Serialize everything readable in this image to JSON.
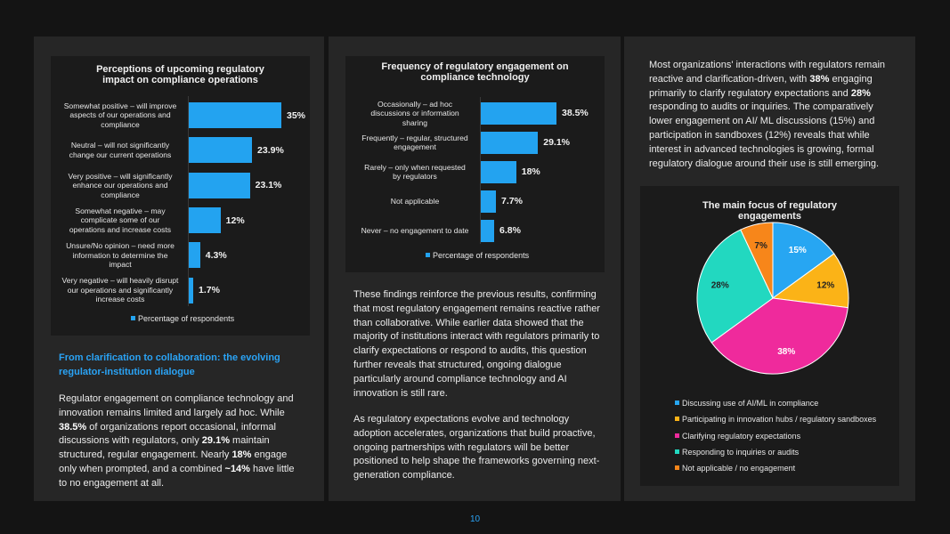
{
  "chart_data": [
    {
      "type": "bar",
      "orientation": "horizontal",
      "title": "Perceptions of upcoming regulatory impact on compliance operations",
      "title_lines": [
        "Perceptions of upcoming regulatory",
        "impact on compliance operations"
      ],
      "categories": [
        "Somewhat positive – will improve aspects of our operations and compliance",
        "Neutral – will not significantly change our current operations",
        "Very positive – will significantly enhance our operations and compliance",
        "Somewhat negative – may complicate some of our operations and increase costs",
        "Unsure/No opinion – need more information to determine the impact",
        "Very negative – will heavily disrupt our operations and significantly increase costs"
      ],
      "category_lines": [
        [
          "Somewhat positive – will improve",
          "aspects of our operations and",
          "compliance"
        ],
        [
          "Neutral – will not significantly",
          "change our current operations"
        ],
        [
          "Very positive – will significantly",
          "enhance our operations and",
          "compliance"
        ],
        [
          "Somewhat negative – may",
          "complicate some of our",
          "operations and increase costs"
        ],
        [
          "Unsure/No opinion – need more",
          "information to determine the",
          "impact"
        ],
        [
          "Very negative – will heavily disrupt",
          "our operations and significantly",
          "increase costs"
        ]
      ],
      "values": [
        35,
        23.9,
        23.1,
        12,
        4.3,
        1.7
      ],
      "value_labels": [
        "35%",
        "23.9%",
        "23.1%",
        "12%",
        "4.3%",
        "1.7%"
      ],
      "legend": "Percentage of respondents",
      "xlim": [
        0,
        35
      ]
    },
    {
      "type": "bar",
      "orientation": "horizontal",
      "title": "Frequency of regulatory engagement on compliance technology",
      "title_lines": [
        "Frequency of regulatory engagement on",
        "compliance technology"
      ],
      "categories": [
        "Occasionally – ad hoc discussions or information sharing",
        "Frequently – regular, structured engagement",
        "Rarely – only when requested by regulators",
        "Not applicable",
        "Never – no engagement to date"
      ],
      "category_lines": [
        [
          "Occasionally – ad hoc",
          "discussions or information",
          "sharing"
        ],
        [
          "Frequently – regular, structured",
          "engagement"
        ],
        [
          "Rarely – only when requested",
          "by regulators"
        ],
        [
          "Not applicable"
        ],
        [
          "Never – no engagement to date"
        ]
      ],
      "values": [
        38.5,
        29.1,
        18,
        7.7,
        6.8
      ],
      "value_labels": [
        "38.5%",
        "29.1%",
        "18%",
        "7.7%",
        "6.8%"
      ],
      "legend": "Percentage of respondents",
      "xlim": [
        0,
        38.5
      ]
    },
    {
      "type": "pie",
      "title": "The main focus of regulatory engagements",
      "title_lines": [
        "The main focus of regulatory",
        "engagements"
      ],
      "slices": [
        {
          "name": "Discussing use of AI/ML in compliance",
          "value": 15,
          "label": "15%",
          "color": "#27a6f2"
        },
        {
          "name": "Participating in innovation hubs / regulatory sandboxes",
          "value": 12,
          "label": "12%",
          "color": "#fbb317"
        },
        {
          "name": "Clarifying regulatory expectations",
          "value": 38,
          "label": "38%",
          "color": "#ef2a9c"
        },
        {
          "name": "Responding to inquiries or audits",
          "value": 28,
          "label": "28%",
          "color": "#22d8c0"
        },
        {
          "name": "Not applicable / no engagement",
          "value": 7,
          "label": "7%",
          "color": "#f7861a"
        }
      ]
    }
  ],
  "section": {
    "heading_lines": [
      "From clarification to collaboration: the evolving",
      "regulator-institution dialogue"
    ],
    "para1_lines": [
      [
        "Regulator engagement on compliance technology and"
      ],
      [
        "innovation remains limited and largely ad hoc. While"
      ],
      [
        {
          "b": "38.5%"
        },
        " of organizations report occasional, informal"
      ],
      [
        "discussions with regulators, only ",
        {
          "b": "29.1%"
        },
        " maintain"
      ],
      [
        "structured, regular engagement. Nearly ",
        {
          "b": "18%"
        },
        " engage"
      ],
      [
        "only when prompted, and a combined ",
        {
          "b": "~14%"
        },
        " have little"
      ],
      [
        "to no engagement at all."
      ]
    ],
    "para2_lines": [
      [
        "These findings reinforce the previous results, confirming"
      ],
      [
        "that most regulatory engagement remains reactive rather"
      ],
      [
        "than collaborative. While earlier data showed that the"
      ],
      [
        "majority of institutions interact with regulators primarily to"
      ],
      [
        "clarify expectations or respond to audits, this question"
      ],
      [
        "further reveals that structured, ongoing dialogue"
      ],
      [
        "particularly around compliance technology and AI"
      ],
      [
        "innovation is still rare."
      ]
    ],
    "para3_lines": [
      [
        "As regulatory expectations evolve and technology"
      ],
      [
        "adoption accelerates, organizations that build proactive,"
      ],
      [
        "ongoing partnerships with regulators will be better"
      ],
      [
        "positioned to help shape the frameworks governing next-"
      ],
      [
        "generation compliance."
      ]
    ],
    "para4_lines": [
      [
        "Most organizations' interactions with regulators remain"
      ],
      [
        "reactive and clarification-driven, with ",
        {
          "b": "38%"
        },
        " engaging"
      ],
      [
        "primarily to clarify regulatory expectations and ",
        {
          "b": "28%"
        }
      ],
      [
        "responding to audits or inquiries. The comparatively"
      ],
      [
        "lower engagement on AI/ ML discussions (15%) and"
      ],
      [
        "participation in sandboxes (12%) reveals that while"
      ],
      [
        "interest in advanced technologies is growing, formal"
      ],
      [
        "regulatory dialogue around their use is still emerging."
      ]
    ]
  },
  "page_number": "10",
  "colors": {
    "accent": "#2aa3f5",
    "bar": "#23a3f0"
  }
}
